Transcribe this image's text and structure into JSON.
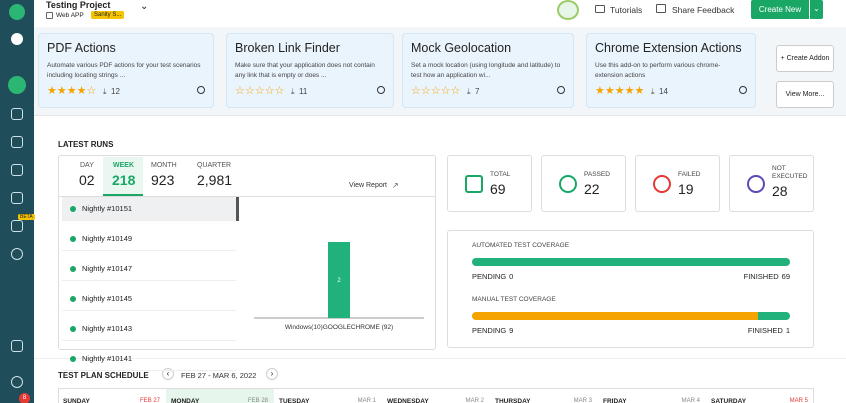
{
  "header": {
    "project": "Testing Project",
    "app": "Web APP",
    "badge": "Sanity S...",
    "links": [
      "Tutorials",
      "Share Feedback"
    ],
    "button": "Create New"
  },
  "sidebar": {
    "beta": "BETA",
    "notifications": "8"
  },
  "addons": [
    {
      "title": "PDF Actions",
      "description": "Automate various PDF actions for your test scenarios including locating strings ...",
      "rating": 4,
      "downloads": "12"
    },
    {
      "title": "Broken Link Finder",
      "description": "Make sure that your application does not contain any link that is empty or does ...",
      "rating": 0,
      "downloads": "11"
    },
    {
      "title": "Mock Geolocation",
      "description": "Set a mock location (using longitude and latitude) to test how an application wi...",
      "rating": 0,
      "downloads": "7"
    },
    {
      "title": "Chrome Extension Actions",
      "description": "Use this add-on to perform various chrome-extension actions",
      "rating": 5,
      "downloads": "14"
    }
  ],
  "addon_buttons": [
    "+ Create Addon",
    "View More..."
  ],
  "latest_runs": {
    "title": "LATEST RUNS",
    "tabs": [
      {
        "label": "DAY",
        "value": "02"
      },
      {
        "label": "WEEK",
        "value": "218"
      },
      {
        "label": "MONTH",
        "value": "923"
      },
      {
        "label": "QUARTER",
        "value": "2,981"
      }
    ],
    "view_report": "View Report",
    "runs": [
      "Nightly #10151",
      "Nightly #10149",
      "Nightly #10147",
      "Nightly #10145",
      "Nightly #10143",
      "Nightly #10141"
    ],
    "chart": {
      "type": "bar",
      "categories": [
        "Windows(10)GOOGLECHROME (92)"
      ],
      "values": [
        2
      ],
      "color": "#20b27a"
    }
  },
  "stats": [
    {
      "label": "TOTAL",
      "value": "69"
    },
    {
      "label": "PASSED",
      "value": "22"
    },
    {
      "label": "FAILED",
      "value": "19"
    },
    {
      "label": "NOT EXECUTED",
      "value": "28"
    }
  ],
  "coverage": [
    {
      "title": "AUTOMATED TEST COVERAGE",
      "pending_label": "PENDING",
      "pending": 0,
      "finished_label": "FINISHED",
      "finished": 69
    },
    {
      "title": "MANUAL TEST COVERAGE",
      "pending_label": "PENDING",
      "pending": 9,
      "finished_label": "FINISHED",
      "finished": 1
    }
  ],
  "schedule": {
    "title": "TEST PLAN SCHEDULE",
    "range": "FEB 27 - MAR 6, 2022",
    "days": [
      {
        "day": "SUNDAY",
        "date": "FEB 27"
      },
      {
        "day": "MONDAY",
        "date": "FEB 28"
      },
      {
        "day": "TUESDAY",
        "date": "MAR 1"
      },
      {
        "day": "WEDNESDAY",
        "date": "MAR 2"
      },
      {
        "day": "THURSDAY",
        "date": "MAR 3"
      },
      {
        "day": "FRIDAY",
        "date": "MAR 4"
      },
      {
        "day": "SATURDAY",
        "date": "MAR 5"
      }
    ]
  }
}
